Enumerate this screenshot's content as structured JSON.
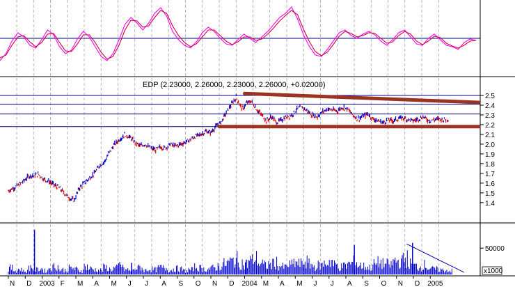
{
  "chart_data": [
    {
      "panel": "oscillator",
      "type": "line",
      "hline": 0.5,
      "ylim": [
        0,
        1
      ],
      "colors": {
        "fast": "#ff00ff",
        "slow": "#cc0044",
        "hline": "#000080"
      },
      "series": [
        {
          "key": "fast",
          "values": [
            0.18,
            0.28,
            0.46,
            0.58,
            0.52,
            0.4,
            0.36,
            0.48,
            0.62,
            0.55,
            0.38,
            0.28,
            0.33,
            0.49,
            0.6,
            0.52,
            0.38,
            0.24,
            0.18,
            0.28,
            0.48,
            0.7,
            0.8,
            0.72,
            0.62,
            0.72,
            0.86,
            0.94,
            0.82,
            0.6,
            0.48,
            0.4,
            0.36,
            0.45,
            0.58,
            0.66,
            0.6,
            0.5,
            0.42,
            0.4,
            0.48,
            0.56,
            0.5,
            0.44,
            0.52,
            0.6,
            0.7,
            0.8,
            0.86,
            0.95,
            0.78,
            0.55,
            0.38,
            0.26,
            0.24,
            0.34,
            0.46,
            0.58,
            0.62,
            0.54,
            0.5,
            0.56,
            0.6,
            0.55,
            0.46,
            0.4,
            0.48,
            0.58,
            0.62,
            0.52,
            0.42,
            0.4,
            0.5,
            0.56,
            0.48,
            0.4,
            0.38,
            0.34,
            0.44,
            0.49,
            0.47
          ]
        },
        {
          "key": "slow",
          "values": [
            0.22,
            0.26,
            0.4,
            0.52,
            0.54,
            0.45,
            0.38,
            0.44,
            0.56,
            0.57,
            0.44,
            0.32,
            0.31,
            0.42,
            0.55,
            0.55,
            0.44,
            0.3,
            0.2,
            0.24,
            0.4,
            0.62,
            0.76,
            0.75,
            0.66,
            0.68,
            0.8,
            0.9,
            0.86,
            0.68,
            0.54,
            0.44,
            0.38,
            0.42,
            0.52,
            0.62,
            0.62,
            0.54,
            0.46,
            0.41,
            0.45,
            0.52,
            0.52,
            0.47,
            0.49,
            0.56,
            0.65,
            0.75,
            0.83,
            0.9,
            0.84,
            0.63,
            0.45,
            0.31,
            0.25,
            0.3,
            0.41,
            0.53,
            0.6,
            0.57,
            0.52,
            0.54,
            0.58,
            0.57,
            0.5,
            0.43,
            0.45,
            0.54,
            0.6,
            0.56,
            0.46,
            0.41,
            0.46,
            0.53,
            0.51,
            0.43,
            0.39,
            0.36,
            0.4,
            0.46,
            0.47
          ]
        }
      ]
    },
    {
      "panel": "price",
      "type": "line",
      "title": "EDP (2.23000, 2.26000, 2.23000, 2.26000, +0.02000)",
      "ylim": [
        1.3,
        2.55
      ],
      "yticks": [
        "2.5",
        "2.4",
        "2.3",
        "2.2",
        "2.1",
        "2.0",
        "1.9",
        "1.8",
        "1.7",
        "1.6",
        "1.5",
        "1.4"
      ],
      "colors": {
        "up": "#0000cc",
        "down": "#dd0000",
        "trend": "#993322",
        "hline": "#000080"
      },
      "hlines": [
        2.5,
        2.41,
        2.31,
        2.18
      ],
      "trendlines": [
        {
          "x0": 1.7,
          "y0": 2.52,
          "x1": 26.6,
          "y1": 2.355
        },
        {
          "x0": 0.2,
          "y0": 2.18,
          "x1": 26.6,
          "y1": 2.18
        }
      ],
      "trendline_start_month": 14,
      "x": [
        0,
        0.3,
        0.6,
        0.9,
        1.2,
        1.5,
        1.8,
        2.1,
        2.4,
        2.7,
        3.0,
        3.3,
        3.6,
        3.9,
        4.2,
        4.5,
        4.8,
        5.1,
        5.4,
        5.7,
        6.0,
        6.3,
        6.6,
        6.9,
        7.2,
        7.5,
        7.8,
        8.1,
        8.4,
        8.7,
        9.0,
        9.3,
        9.6,
        9.9,
        10.2,
        10.5,
        10.8,
        11.1,
        11.4,
        11.7,
        12.0,
        12.3,
        12.6,
        12.9,
        13.2,
        13.5,
        13.8,
        13.9,
        14.1,
        14.4,
        14.7,
        15.0,
        15.3,
        15.6,
        15.9,
        16.2,
        16.5,
        16.8,
        17.1,
        17.4,
        17.7,
        18.0,
        18.3,
        18.6,
        18.9,
        19.2,
        19.5,
        19.8,
        20.1,
        20.4,
        20.7,
        21.0,
        21.3,
        21.6,
        21.9,
        22.2,
        22.5,
        22.8,
        23.1,
        23.4,
        23.7,
        24.0,
        24.3,
        24.6,
        24.9,
        25.2,
        25.5,
        25.8,
        26.1
      ],
      "values": [
        1.52,
        1.55,
        1.58,
        1.62,
        1.67,
        1.68,
        1.69,
        1.64,
        1.62,
        1.58,
        1.55,
        1.5,
        1.45,
        1.42,
        1.55,
        1.6,
        1.65,
        1.7,
        1.78,
        1.82,
        1.92,
        2.0,
        2.05,
        2.1,
        2.07,
        2.02,
        1.98,
        2.0,
        1.96,
        1.94,
        1.97,
        1.96,
        2.0,
        1.98,
        2.0,
        2.02,
        2.05,
        2.08,
        2.1,
        2.13,
        2.12,
        2.18,
        2.22,
        2.32,
        2.4,
        2.48,
        2.38,
        2.36,
        2.42,
        2.44,
        2.36,
        2.3,
        2.24,
        2.28,
        2.22,
        2.25,
        2.28,
        2.3,
        2.36,
        2.38,
        2.34,
        2.3,
        2.28,
        2.33,
        2.36,
        2.35,
        2.34,
        2.38,
        2.36,
        2.3,
        2.26,
        2.28,
        2.31,
        2.26,
        2.24,
        2.22,
        2.25,
        2.24,
        2.26,
        2.27,
        2.25,
        2.24,
        2.26,
        2.28,
        2.24,
        2.25,
        2.26,
        2.25,
        2.26
      ]
    },
    {
      "panel": "volume",
      "type": "bar",
      "ylim": [
        0,
        90000
      ],
      "yticks": [
        "50000"
      ],
      "unit_label": "x1000",
      "colors": {
        "bars": "#0000cc",
        "trend": "#0000aa"
      },
      "spikes": [
        {
          "x": 1.55,
          "value": 85000
        },
        {
          "x": 7.3,
          "value": 22000
        },
        {
          "x": 14.1,
          "value": 28000
        },
        {
          "x": 20.5,
          "value": 56000
        },
        {
          "x": 23.95,
          "value": 60000
        }
      ],
      "trend": {
        "x0": 23.6,
        "v0": 58000,
        "x1": 27.0,
        "v1": 4000
      },
      "base_values": [
        12,
        8,
        10,
        6,
        14,
        9,
        11,
        7,
        13,
        16,
        9,
        8,
        12,
        10,
        7,
        15,
        11,
        9,
        8,
        13,
        10,
        12,
        18,
        9,
        7,
        11,
        14,
        8,
        10,
        9,
        13,
        12,
        8,
        11,
        10,
        7,
        9,
        14,
        12,
        10,
        11,
        13,
        16,
        20,
        24,
        28,
        22,
        18,
        26,
        30,
        21,
        17,
        19,
        23,
        16,
        14,
        18,
        22,
        20,
        24,
        19,
        15,
        17,
        21,
        25,
        18,
        14,
        16,
        20,
        23,
        17,
        15,
        13,
        19,
        22,
        20,
        18,
        26,
        24,
        30,
        20,
        16,
        14,
        18,
        12,
        10,
        9,
        8,
        7
      ],
      "months": [
        "N",
        "D",
        "2003",
        "F",
        "M",
        "A",
        "M",
        "J",
        "J",
        "A",
        "S",
        "O",
        "N",
        "D",
        "2004",
        "M",
        "A",
        "M",
        "J",
        "J",
        "A",
        "S",
        "O",
        "N",
        "D",
        "2005"
      ]
    }
  ]
}
